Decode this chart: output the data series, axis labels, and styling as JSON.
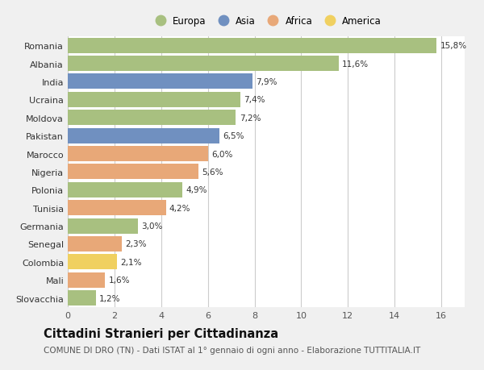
{
  "categories": [
    "Romania",
    "Albania",
    "India",
    "Ucraina",
    "Moldova",
    "Pakistan",
    "Marocco",
    "Nigeria",
    "Polonia",
    "Tunisia",
    "Germania",
    "Senegal",
    "Colombia",
    "Mali",
    "Slovacchia"
  ],
  "values": [
    15.8,
    11.6,
    7.9,
    7.4,
    7.2,
    6.5,
    6.0,
    5.6,
    4.9,
    4.2,
    3.0,
    2.3,
    2.1,
    1.6,
    1.2
  ],
  "labels": [
    "15,8%",
    "11,6%",
    "7,9%",
    "7,4%",
    "7,2%",
    "6,5%",
    "6,0%",
    "5,6%",
    "4,9%",
    "4,2%",
    "3,0%",
    "2,3%",
    "2,1%",
    "1,6%",
    "1,2%"
  ],
  "continents": [
    "Europa",
    "Europa",
    "Asia",
    "Europa",
    "Europa",
    "Asia",
    "Africa",
    "Africa",
    "Europa",
    "Africa",
    "Europa",
    "Africa",
    "America",
    "Africa",
    "Europa"
  ],
  "continent_colors": {
    "Europa": "#a8c080",
    "Asia": "#7090c0",
    "Africa": "#e8a878",
    "America": "#f0d060"
  },
  "legend_order": [
    "Europa",
    "Asia",
    "Africa",
    "America"
  ],
  "title": "Cittadini Stranieri per Cittadinanza",
  "subtitle": "COMUNE DI DRO (TN) - Dati ISTAT al 1° gennaio di ogni anno - Elaborazione TUTTITALIA.IT",
  "xlim": [
    0,
    17
  ],
  "xticks": [
    0,
    2,
    4,
    6,
    8,
    10,
    12,
    14,
    16
  ],
  "background_color": "#f0f0f0",
  "chart_bg": "#ffffff",
  "grid_color": "#cccccc",
  "title_fontsize": 10.5,
  "subtitle_fontsize": 7.5,
  "label_fontsize": 7.5,
  "tick_fontsize": 8
}
